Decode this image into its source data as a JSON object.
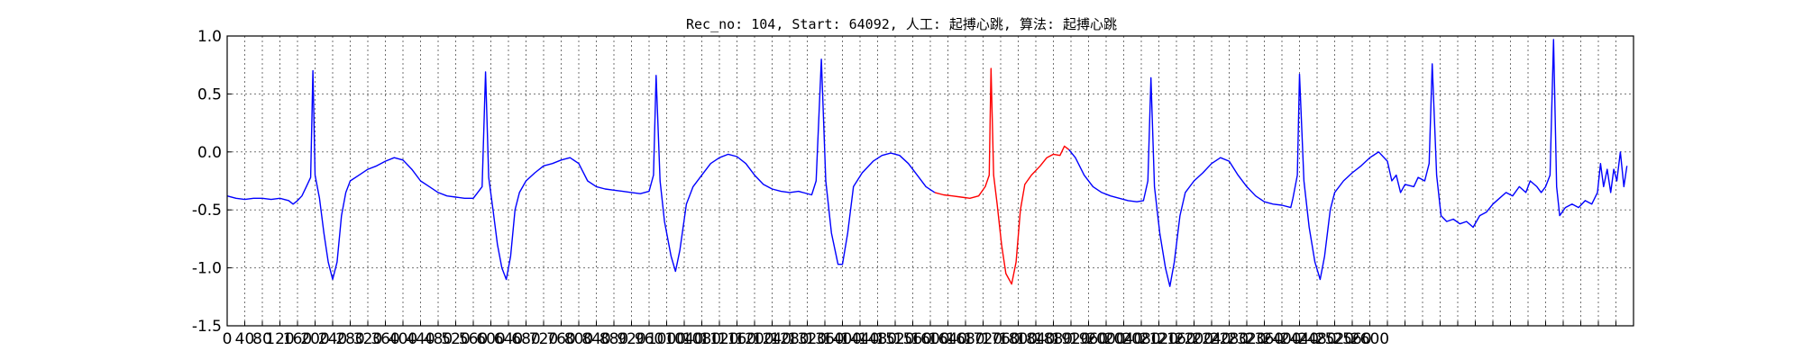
{
  "chart_data": {
    "type": "line",
    "title": "Rec_no: 104, Start: 64092, 人工: 起搏心跳, 算法: 起搏心跳",
    "xlabel": "",
    "ylabel": "",
    "xlim": [
      0,
      3200
    ],
    "ylim": [
      -1.5,
      1.0
    ],
    "grid": true,
    "x_ticks_step": 40,
    "x_tick_labels_shown": [
      0,
      40,
      80,
      120,
      160,
      200,
      240,
      280,
      320,
      360,
      400,
      440,
      480,
      520,
      560,
      600,
      640,
      680,
      720,
      760,
      800,
      840,
      880,
      920,
      960,
      1000,
      1040,
      1080,
      1120,
      1160,
      1200,
      1240,
      1280,
      1320,
      1360,
      1400,
      1440,
      1480,
      1520,
      1560,
      1600,
      1640,
      1680,
      1720,
      1760,
      1800,
      1840,
      1880,
      1920,
      1960,
      2000,
      2040,
      2080,
      2120,
      2160,
      2200,
      2240,
      2280,
      2320,
      2360,
      2400,
      2440,
      2480,
      2520,
      2560,
      2600
    ],
    "y_ticks": [
      1.0,
      0.5,
      0.0,
      -0.5,
      -1.0,
      -1.5
    ],
    "y_tick_labels": [
      "1.0",
      "0.5",
      "0.0",
      "-0.5",
      "-1.0",
      "-1.5"
    ],
    "series": [
      {
        "color": "#0000ff",
        "points": [
          [
            0,
            -0.38
          ],
          [
            20,
            -0.4
          ],
          [
            40,
            -0.41
          ],
          [
            60,
            -0.4
          ],
          [
            80,
            -0.4
          ],
          [
            100,
            -0.41
          ],
          [
            120,
            -0.4
          ],
          [
            140,
            -0.42
          ],
          [
            150,
            -0.45
          ],
          [
            160,
            -0.42
          ],
          [
            170,
            -0.38
          ],
          [
            180,
            -0.3
          ],
          [
            190,
            -0.22
          ],
          [
            195,
            0.7
          ],
          [
            200,
            -0.2
          ],
          [
            210,
            -0.4
          ],
          [
            220,
            -0.7
          ],
          [
            230,
            -0.95
          ],
          [
            240,
            -1.1
          ],
          [
            250,
            -0.95
          ],
          [
            260,
            -0.55
          ],
          [
            270,
            -0.35
          ],
          [
            280,
            -0.25
          ],
          [
            300,
            -0.2
          ],
          [
            320,
            -0.15
          ],
          [
            340,
            -0.12
          ],
          [
            360,
            -0.08
          ],
          [
            380,
            -0.05
          ],
          [
            400,
            -0.07
          ],
          [
            420,
            -0.15
          ],
          [
            440,
            -0.25
          ],
          [
            460,
            -0.3
          ],
          [
            480,
            -0.35
          ],
          [
            500,
            -0.38
          ],
          [
            520,
            -0.39
          ],
          [
            540,
            -0.4
          ],
          [
            560,
            -0.4
          ],
          [
            570,
            -0.35
          ],
          [
            580,
            -0.3
          ],
          [
            588,
            0.69
          ],
          [
            595,
            -0.22
          ],
          [
            605,
            -0.5
          ],
          [
            615,
            -0.8
          ],
          [
            625,
            -1.0
          ],
          [
            635,
            -1.1
          ],
          [
            645,
            -0.9
          ],
          [
            655,
            -0.5
          ],
          [
            665,
            -0.35
          ],
          [
            680,
            -0.25
          ],
          [
            700,
            -0.18
          ],
          [
            720,
            -0.12
          ],
          [
            740,
            -0.1
          ],
          [
            760,
            -0.07
          ],
          [
            780,
            -0.05
          ],
          [
            800,
            -0.1
          ],
          [
            820,
            -0.25
          ],
          [
            840,
            -0.3
          ],
          [
            860,
            -0.32
          ],
          [
            880,
            -0.33
          ],
          [
            900,
            -0.34
          ],
          [
            920,
            -0.35
          ],
          [
            940,
            -0.36
          ],
          [
            960,
            -0.34
          ],
          [
            970,
            -0.2
          ],
          [
            976,
            0.66
          ],
          [
            985,
            -0.25
          ],
          [
            995,
            -0.6
          ],
          [
            1010,
            -0.9
          ],
          [
            1020,
            -1.03
          ],
          [
            1030,
            -0.85
          ],
          [
            1045,
            -0.45
          ],
          [
            1060,
            -0.3
          ],
          [
            1080,
            -0.2
          ],
          [
            1100,
            -0.1
          ],
          [
            1120,
            -0.05
          ],
          [
            1140,
            -0.02
          ],
          [
            1160,
            -0.04
          ],
          [
            1180,
            -0.1
          ],
          [
            1200,
            -0.2
          ],
          [
            1220,
            -0.28
          ],
          [
            1240,
            -0.32
          ],
          [
            1260,
            -0.34
          ],
          [
            1280,
            -0.35
          ],
          [
            1300,
            -0.34
          ],
          [
            1330,
            -0.37
          ],
          [
            1340,
            -0.25
          ],
          [
            1352,
            0.8
          ],
          [
            1362,
            -0.25
          ],
          [
            1375,
            -0.7
          ],
          [
            1390,
            -0.97
          ],
          [
            1400,
            -0.97
          ],
          [
            1412,
            -0.7
          ],
          [
            1425,
            -0.3
          ],
          [
            1445,
            -0.18
          ],
          [
            1470,
            -0.08
          ],
          [
            1490,
            -0.03
          ],
          [
            1510,
            -0.01
          ],
          [
            1530,
            -0.03
          ],
          [
            1550,
            -0.1
          ],
          [
            1570,
            -0.2
          ],
          [
            1590,
            -0.3
          ],
          [
            1610,
            -0.35
          ]
        ]
      },
      {
        "color": "#ff0000",
        "points": [
          [
            1610,
            -0.35
          ],
          [
            1630,
            -0.37
          ],
          [
            1650,
            -0.38
          ],
          [
            1670,
            -0.39
          ],
          [
            1690,
            -0.4
          ],
          [
            1710,
            -0.38
          ],
          [
            1725,
            -0.3
          ],
          [
            1734,
            -0.2
          ],
          [
            1738,
            0.72
          ],
          [
            1744,
            -0.2
          ],
          [
            1752,
            -0.45
          ],
          [
            1762,
            -0.8
          ],
          [
            1772,
            -1.05
          ],
          [
            1785,
            -1.14
          ],
          [
            1795,
            -0.95
          ],
          [
            1805,
            -0.5
          ],
          [
            1815,
            -0.28
          ],
          [
            1830,
            -0.2
          ],
          [
            1850,
            -0.12
          ],
          [
            1865,
            -0.05
          ],
          [
            1880,
            -0.02
          ],
          [
            1895,
            -0.03
          ],
          [
            1905,
            0.05
          ],
          [
            1915,
            0.02
          ]
        ]
      },
      {
        "color": "#0000ff",
        "points": [
          [
            1915,
            0.02
          ],
          [
            1930,
            -0.05
          ],
          [
            1950,
            -0.2
          ],
          [
            1970,
            -0.3
          ],
          [
            1990,
            -0.35
          ],
          [
            2010,
            -0.38
          ],
          [
            2030,
            -0.4
          ],
          [
            2050,
            -0.42
          ],
          [
            2070,
            -0.43
          ],
          [
            2085,
            -0.42
          ],
          [
            2095,
            -0.25
          ],
          [
            2102,
            0.64
          ],
          [
            2110,
            -0.3
          ],
          [
            2122,
            -0.7
          ],
          [
            2135,
            -1.0
          ],
          [
            2145,
            -1.16
          ],
          [
            2155,
            -0.95
          ],
          [
            2168,
            -0.55
          ],
          [
            2180,
            -0.35
          ],
          [
            2200,
            -0.25
          ],
          [
            2220,
            -0.18
          ],
          [
            2240,
            -0.1
          ],
          [
            2260,
            -0.05
          ],
          [
            2280,
            -0.08
          ],
          [
            2300,
            -0.2
          ],
          [
            2320,
            -0.3
          ],
          [
            2340,
            -0.38
          ],
          [
            2360,
            -0.43
          ],
          [
            2380,
            -0.45
          ],
          [
            2400,
            -0.46
          ],
          [
            2420,
            -0.48
          ],
          [
            2425,
            -0.4
          ],
          [
            2435,
            -0.2
          ],
          [
            2440,
            0.67
          ],
          [
            2450,
            -0.25
          ],
          [
            2462,
            -0.65
          ],
          [
            2475,
            -0.95
          ],
          [
            2487,
            -1.1
          ],
          [
            2497,
            -0.9
          ],
          [
            2510,
            -0.5
          ],
          [
            2520,
            -0.35
          ],
          [
            2540,
            -0.25
          ],
          [
            2560,
            -0.18
          ],
          [
            2580,
            -0.12
          ],
          [
            2600,
            -0.05
          ],
          [
            2620,
            0.0
          ],
          [
            2640,
            -0.08
          ],
          [
            2650,
            -0.25
          ],
          [
            2660,
            -0.2
          ],
          [
            2670,
            -0.35
          ],
          [
            2680,
            -0.28
          ],
          [
            2700,
            -0.3
          ],
          [
            2710,
            -0.22
          ],
          [
            2725,
            -0.25
          ],
          [
            2735,
            -0.1
          ],
          [
            2742,
            0.76
          ],
          [
            2752,
            -0.2
          ],
          [
            2762,
            -0.55
          ],
          [
            2775,
            -0.6
          ],
          [
            2790,
            -0.58
          ],
          [
            2805,
            -0.62
          ],
          [
            2820,
            -0.6
          ],
          [
            2835,
            -0.65
          ],
          [
            2850,
            -0.55
          ],
          [
            2865,
            -0.52
          ],
          [
            2880,
            -0.45
          ],
          [
            2895,
            -0.4
          ],
          [
            2910,
            -0.35
          ],
          [
            2925,
            -0.38
          ],
          [
            2940,
            -0.3
          ],
          [
            2955,
            -0.35
          ],
          [
            2965,
            -0.25
          ],
          [
            2980,
            -0.3
          ],
          [
            2990,
            -0.35
          ],
          [
            3000,
            -0.3
          ],
          [
            3010,
            -0.2
          ],
          [
            3018,
            0.97
          ],
          [
            3025,
            -0.3
          ],
          [
            3032,
            -0.55
          ],
          [
            3045,
            -0.48
          ],
          [
            3060,
            -0.45
          ],
          [
            3075,
            -0.48
          ],
          [
            3090,
            -0.42
          ],
          [
            3105,
            -0.45
          ],
          [
            3118,
            -0.35
          ],
          [
            3125,
            -0.1
          ],
          [
            3132,
            -0.3
          ],
          [
            3140,
            -0.15
          ],
          [
            3148,
            -0.35
          ],
          [
            3155,
            -0.15
          ],
          [
            3162,
            -0.25
          ],
          [
            3170,
            0.0
          ],
          [
            3178,
            -0.3
          ],
          [
            3185,
            -0.12
          ]
        ]
      }
    ]
  }
}
